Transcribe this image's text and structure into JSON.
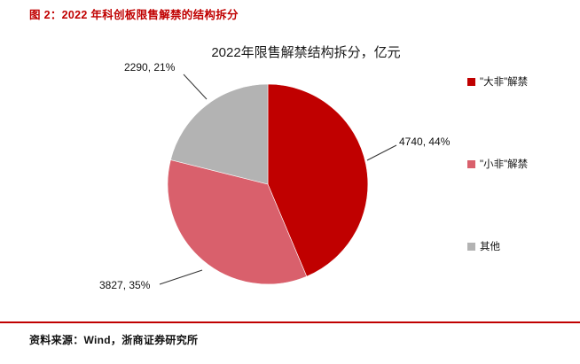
{
  "header": {
    "title": "图 2：2022 年科创板限售解禁的结构拆分"
  },
  "chart_data": {
    "type": "pie",
    "title": "2022年限售解禁结构拆分，亿元",
    "unit_label": "亿元",
    "categories": [
      "\"大非\"解禁",
      "\"小非\"解禁",
      "其他"
    ],
    "values": [
      4740,
      3827,
      2290
    ],
    "percents": [
      44,
      35,
      21
    ],
    "colors": [
      "#c00000",
      "#d9606c",
      "#b3b3b3"
    ],
    "data_labels": [
      "4740, 44%",
      "3827, 35%",
      "2290, 21%"
    ],
    "start_angle_deg": 0,
    "direction": "clockwise",
    "legend_position": "right",
    "legend": [
      "\"大非\"解禁",
      "\"小非\"解禁",
      "其他"
    ]
  },
  "footer": {
    "source": "资料来源：Wind，浙商证券研究所"
  }
}
